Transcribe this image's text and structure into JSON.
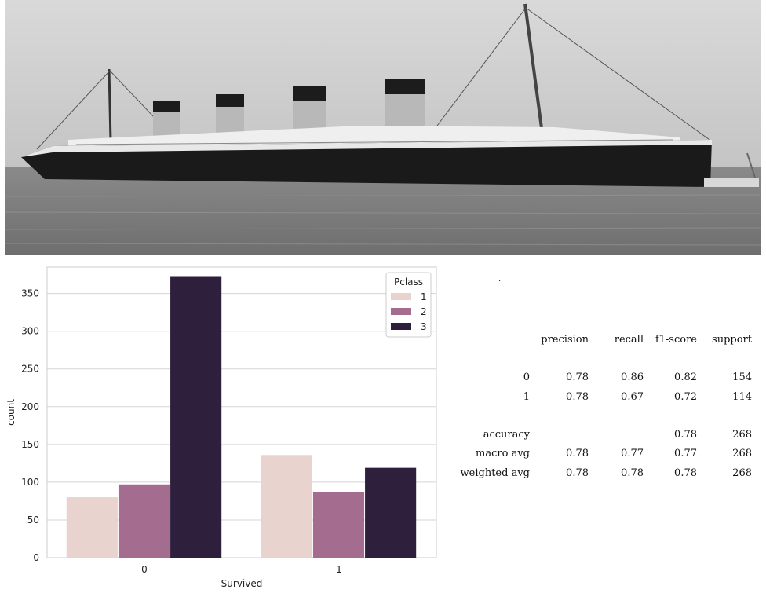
{
  "chart_data": {
    "type": "bar",
    "categories": [
      "0",
      "1"
    ],
    "series": [
      {
        "name": "1",
        "values": [
          80,
          136
        ]
      },
      {
        "name": "2",
        "values": [
          97,
          87
        ]
      },
      {
        "name": "3",
        "values": [
          372,
          119
        ]
      }
    ],
    "xlabel": "Survived",
    "ylabel": "count",
    "ylim": [
      0,
      385
    ],
    "yticks": [
      0,
      50,
      100,
      150,
      200,
      250,
      300,
      350
    ],
    "legend": {
      "title": "Pclass",
      "position": "top-right"
    },
    "colors": [
      "#e8d3cf",
      "#a46c8e",
      "#2e1f3d"
    ],
    "grid": "horizontal"
  },
  "report": {
    "header": [
      "precision",
      "recall",
      "f1-score",
      "support"
    ],
    "rows": [
      {
        "label": "0",
        "values": [
          "0.78",
          "0.86",
          "0.82",
          "154"
        ]
      },
      {
        "label": "1",
        "values": [
          "0.78",
          "0.67",
          "0.72",
          "114"
        ]
      },
      {
        "label": "accuracy",
        "values": [
          "",
          "",
          "0.78",
          "268"
        ]
      },
      {
        "label": "macro avg",
        "values": [
          "0.78",
          "0.77",
          "0.77",
          "268"
        ]
      },
      {
        "label": "weighted avg",
        "values": [
          "0.78",
          "0.78",
          "0.78",
          "268"
        ]
      }
    ]
  }
}
